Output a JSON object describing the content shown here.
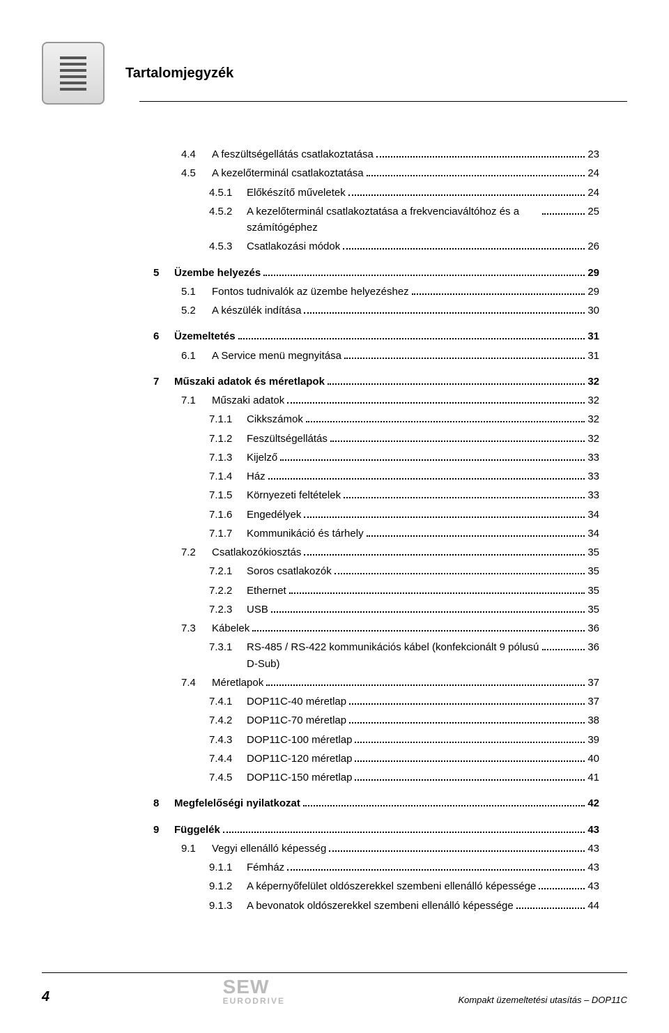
{
  "page_title": "Tartalomjegyzék",
  "footer": {
    "page_number": "4",
    "logo_top": "SEW",
    "logo_bottom": "EURODRIVE",
    "doc_title": "Kompakt üzemeltetési utasítás – DOP11C"
  },
  "toc": [
    {
      "level": 1,
      "num": "4.4",
      "text": "A feszültségellátás csatlakoztatása",
      "page": "23",
      "bold": false,
      "gap": false
    },
    {
      "level": 1,
      "num": "4.5",
      "text": "A kezelőterminál csatlakoztatása",
      "page": "24",
      "bold": false,
      "gap": false
    },
    {
      "level": 2,
      "num": "4.5.1",
      "text": "Előkészítő műveletek",
      "page": "24",
      "bold": false,
      "gap": false
    },
    {
      "level": 2,
      "num": "4.5.2",
      "text": "A kezelőterminál csatlakoztatása a frekvenciaváltóhoz és a számítógéphez",
      "page": "25",
      "bold": false,
      "gap": false,
      "wrap": true
    },
    {
      "level": 2,
      "num": "4.5.3",
      "text": "Csatlakozási módok",
      "page": "26",
      "bold": false,
      "gap": false
    },
    {
      "level": 0,
      "num": "5",
      "text": "Üzembe helyezés",
      "page": "29",
      "bold": true,
      "gap": true
    },
    {
      "level": 1,
      "num": "5.1",
      "text": "Fontos tudnivalók az üzembe helyezéshez",
      "page": "29",
      "bold": false,
      "gap": false
    },
    {
      "level": 1,
      "num": "5.2",
      "text": "A készülék indítása",
      "page": "30",
      "bold": false,
      "gap": false
    },
    {
      "level": 0,
      "num": "6",
      "text": "Üzemeltetés",
      "page": "31",
      "bold": true,
      "gap": true
    },
    {
      "level": 1,
      "num": "6.1",
      "text": "A Service menü megnyitása",
      "page": "31",
      "bold": false,
      "gap": false
    },
    {
      "level": 0,
      "num": "7",
      "text": "Műszaki adatok és méretlapok",
      "page": "32",
      "bold": true,
      "gap": true
    },
    {
      "level": 1,
      "num": "7.1",
      "text": "Műszaki adatok",
      "page": "32",
      "bold": false,
      "gap": false
    },
    {
      "level": 2,
      "num": "7.1.1",
      "text": "Cikkszámok",
      "page": "32",
      "bold": false,
      "gap": false
    },
    {
      "level": 2,
      "num": "7.1.2",
      "text": "Feszültségellátás",
      "page": "32",
      "bold": false,
      "gap": false
    },
    {
      "level": 2,
      "num": "7.1.3",
      "text": "Kijelző",
      "page": "33",
      "bold": false,
      "gap": false
    },
    {
      "level": 2,
      "num": "7.1.4",
      "text": "Ház",
      "page": "33",
      "bold": false,
      "gap": false
    },
    {
      "level": 2,
      "num": "7.1.5",
      "text": "Környezeti feltételek",
      "page": "33",
      "bold": false,
      "gap": false
    },
    {
      "level": 2,
      "num": "7.1.6",
      "text": "Engedélyek",
      "page": "34",
      "bold": false,
      "gap": false
    },
    {
      "level": 2,
      "num": "7.1.7",
      "text": "Kommunikáció és tárhely",
      "page": "34",
      "bold": false,
      "gap": false
    },
    {
      "level": 1,
      "num": "7.2",
      "text": "Csatlakozókiosztás",
      "page": "35",
      "bold": false,
      "gap": false
    },
    {
      "level": 2,
      "num": "7.2.1",
      "text": "Soros csatlakozók",
      "page": "35",
      "bold": false,
      "gap": false
    },
    {
      "level": 2,
      "num": "7.2.2",
      "text": "Ethernet",
      "page": "35",
      "bold": false,
      "gap": false
    },
    {
      "level": 2,
      "num": "7.2.3",
      "text": "USB",
      "page": "35",
      "bold": false,
      "gap": false
    },
    {
      "level": 1,
      "num": "7.3",
      "text": "Kábelek",
      "page": "36",
      "bold": false,
      "gap": false
    },
    {
      "level": 2,
      "num": "7.3.1",
      "text": "RS-485 / RS-422 kommunikációs kábel (konfekcionált 9 pólusú D-Sub)",
      "page": "36",
      "bold": false,
      "gap": false,
      "wrap": true
    },
    {
      "level": 1,
      "num": "7.4",
      "text": "Méretlapok",
      "page": "37",
      "bold": false,
      "gap": false
    },
    {
      "level": 2,
      "num": "7.4.1",
      "text": "DOP11C-40 méretlap",
      "page": "37",
      "bold": false,
      "gap": false
    },
    {
      "level": 2,
      "num": "7.4.2",
      "text": "DOP11C-70 méretlap",
      "page": "38",
      "bold": false,
      "gap": false
    },
    {
      "level": 2,
      "num": "7.4.3",
      "text": "DOP11C-100 méretlap",
      "page": "39",
      "bold": false,
      "gap": false
    },
    {
      "level": 2,
      "num": "7.4.4",
      "text": "DOP11C-120 méretlap",
      "page": "40",
      "bold": false,
      "gap": false
    },
    {
      "level": 2,
      "num": "7.4.5",
      "text": "DOP11C-150 méretlap",
      "page": "41",
      "bold": false,
      "gap": false
    },
    {
      "level": 0,
      "num": "8",
      "text": "Megfelelőségi nyilatkozat",
      "page": "42",
      "bold": true,
      "gap": true
    },
    {
      "level": 0,
      "num": "9",
      "text": "Függelék",
      "page": "43",
      "bold": true,
      "gap": true
    },
    {
      "level": 1,
      "num": "9.1",
      "text": "Vegyi ellenálló képesség",
      "page": "43",
      "bold": false,
      "gap": false
    },
    {
      "level": 2,
      "num": "9.1.1",
      "text": "Fémház",
      "page": "43",
      "bold": false,
      "gap": false
    },
    {
      "level": 2,
      "num": "9.1.2",
      "text": "A képernyőfelület oldószerekkel szembeni ellenálló képessége",
      "page": "43",
      "bold": false,
      "gap": false
    },
    {
      "level": 2,
      "num": "9.1.3",
      "text": "A bevonatok oldószerekkel szembeni ellenálló képessége",
      "page": "44",
      "bold": false,
      "gap": false
    }
  ]
}
